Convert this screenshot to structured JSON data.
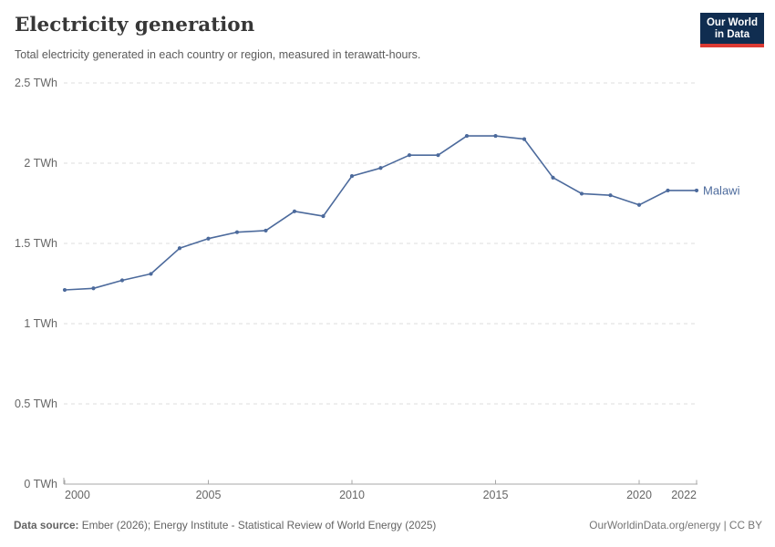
{
  "logo": {
    "line1": "Our World",
    "line2": "in Data",
    "bg_color": "#102D50",
    "accent_color": "#DC3A33"
  },
  "footer": {
    "datasource_label": "Data source:",
    "datasource_value": " Ember (2026); Energy Institute - Statistical Review of World Energy (2025)",
    "rights": "OurWorldinData.org/energy | CC BY"
  },
  "chart_data": {
    "type": "line",
    "title": "Electricity generation",
    "subtitle": "Total electricity generated in each country or region, measured in terawatt-hours.",
    "unit": "TWh",
    "x": [
      2000,
      2001,
      2002,
      2003,
      2004,
      2005,
      2006,
      2007,
      2008,
      2009,
      2010,
      2011,
      2012,
      2013,
      2014,
      2015,
      2016,
      2017,
      2018,
      2019,
      2020,
      2021,
      2022
    ],
    "series": [
      {
        "name": "Malawi",
        "color": "#4C6A9C",
        "values": [
          1.21,
          1.22,
          1.27,
          1.31,
          1.47,
          1.53,
          1.57,
          1.58,
          1.7,
          1.67,
          1.92,
          1.97,
          2.05,
          2.05,
          2.17,
          2.17,
          2.15,
          1.91,
          1.81,
          1.8,
          1.74,
          1.83,
          1.83
        ]
      }
    ],
    "ylim": [
      0,
      2.5
    ],
    "y_ticks": [
      {
        "value": 0,
        "label": "0 TWh"
      },
      {
        "value": 0.5,
        "label": "0.5 TWh"
      },
      {
        "value": 1,
        "label": "1 TWh"
      },
      {
        "value": 1.5,
        "label": "1.5 TWh"
      },
      {
        "value": 2,
        "label": "2 TWh"
      },
      {
        "value": 2.5,
        "label": "2.5 TWh"
      }
    ],
    "x_ticks": [
      2000,
      2005,
      2010,
      2015,
      2020,
      2022
    ],
    "grid": "horizontal-dashed",
    "grid_color": "#dcdcdc",
    "axis_color": "#a7a7a7",
    "legend": "end-of-line-label"
  }
}
